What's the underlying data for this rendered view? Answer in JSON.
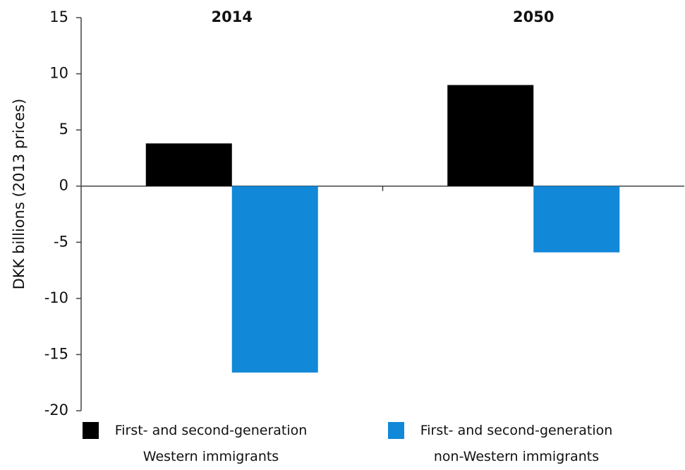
{
  "chart_data": {
    "type": "bar",
    "y_label": "DKK billions (2013 prices)",
    "categories": [
      "2014",
      "2050"
    ],
    "series": [
      {
        "name": "First- and second-generation Western immigrants",
        "color": "#000000",
        "values": [
          3.8,
          9.0
        ]
      },
      {
        "name": "First- and second-generation non-Western immigrants",
        "color": "#1188d8",
        "values": [
          -16.6,
          -5.9
        ]
      }
    ],
    "ylim": [
      -20,
      15
    ],
    "yticks": [
      15,
      10,
      5,
      0,
      -5,
      -10,
      -15,
      -20
    ],
    "legend": "bottom",
    "grid": false
  }
}
